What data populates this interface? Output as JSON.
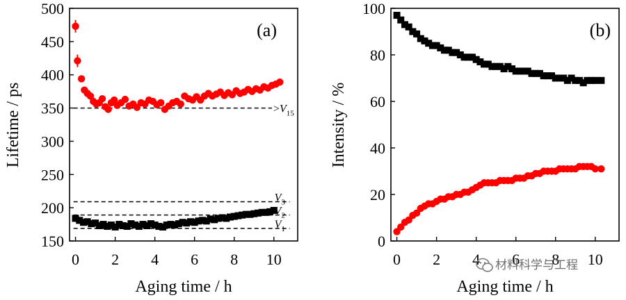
{
  "chart_data": [
    {
      "type": "scatter",
      "panel_label": "(a)",
      "xlabel": "Aging time / h",
      "ylabel": "Lifetime / ps",
      "xlim": [
        -0.3,
        11.2
      ],
      "ylim": [
        150,
        500
      ],
      "xticks": [
        "0",
        "2",
        "4",
        "6",
        "8",
        "10"
      ],
      "yticks": [
        "150",
        "200",
        "250",
        "300",
        "350",
        "400",
        "450",
        "500"
      ],
      "series": [
        {
          "name": "red",
          "color": "#ff0000",
          "marker": "circle",
          "x": [
            0,
            0.1,
            0.3,
            0.45,
            0.6,
            0.75,
            0.9,
            1.05,
            1.2,
            1.35,
            1.5,
            1.65,
            1.8,
            1.95,
            2.1,
            2.3,
            2.5,
            2.7,
            2.9,
            3.1,
            3.3,
            3.5,
            3.7,
            3.9,
            4.1,
            4.3,
            4.5,
            4.7,
            4.9,
            5.1,
            5.3,
            5.5,
            5.7,
            5.9,
            6.1,
            6.3,
            6.5,
            6.7,
            6.9,
            7.1,
            7.3,
            7.5,
            7.7,
            7.9,
            8.1,
            8.3,
            8.5,
            8.7,
            8.9,
            9.1,
            9.3,
            9.5,
            9.7,
            9.9,
            10.1,
            10.3
          ],
          "y": [
            473,
            421,
            394,
            377,
            372,
            368,
            360,
            356,
            358,
            364,
            352,
            348,
            358,
            362,
            354,
            358,
            363,
            353,
            356,
            351,
            358,
            356,
            362,
            360,
            355,
            358,
            348,
            353,
            358,
            360,
            356,
            368,
            364,
            362,
            367,
            362,
            368,
            372,
            368,
            371,
            374,
            369,
            373,
            370,
            376,
            372,
            374,
            378,
            375,
            379,
            377,
            382,
            380,
            384,
            386,
            389
          ],
          "error_bars_on": [
            0,
            1
          ]
        },
        {
          "name": "black",
          "color": "#000000",
          "marker": "square",
          "x": [
            0,
            0.2,
            0.4,
            0.6,
            0.8,
            1.0,
            1.2,
            1.4,
            1.6,
            1.8,
            2.0,
            2.2,
            2.4,
            2.6,
            2.8,
            3.0,
            3.2,
            3.4,
            3.6,
            3.8,
            4.0,
            4.2,
            4.4,
            4.6,
            4.8,
            5.0,
            5.2,
            5.4,
            5.6,
            5.8,
            6.0,
            6.2,
            6.4,
            6.6,
            6.8,
            7.0,
            7.2,
            7.4,
            7.6,
            7.8,
            8.0,
            8.2,
            8.4,
            8.6,
            8.8,
            9.0,
            9.2,
            9.4,
            9.6,
            9.8,
            10.0
          ],
          "y": [
            184,
            181,
            178,
            179,
            176,
            177,
            173,
            175,
            172,
            174,
            171,
            175,
            173,
            172,
            176,
            174,
            172,
            175,
            173,
            176,
            174,
            172,
            171,
            174,
            175,
            174,
            176,
            178,
            177,
            179,
            178,
            180,
            181,
            180,
            183,
            182,
            184,
            185,
            184,
            186,
            187,
            188,
            189,
            190,
            190,
            191,
            192,
            193,
            193,
            194,
            196
          ]
        }
      ],
      "reference_lines": [
        {
          "y": 350,
          "x_range": [
            -0.1,
            9.9
          ],
          "label_main": "V",
          "label_sub": "15",
          "label_prefix": ">"
        },
        {
          "y": 209,
          "x_range": [
            -0.1,
            10.8
          ],
          "label_main": "V",
          "label_sub": "3"
        },
        {
          "y": 189,
          "x_range": [
            -0.1,
            10.8
          ],
          "label_main": "V",
          "label_sub": "2"
        },
        {
          "y": 169,
          "x_range": [
            -0.1,
            10.8
          ],
          "label_main": "V",
          "label_sub": "1"
        }
      ]
    },
    {
      "type": "scatter",
      "panel_label": "(b)",
      "xlabel": "Aging time / h",
      "ylabel": "Intensity / %",
      "xlim": [
        -0.3,
        11.2
      ],
      "ylim": [
        0,
        100
      ],
      "xticks": [
        "0",
        "2",
        "4",
        "6",
        "8",
        "10"
      ],
      "yticks": [
        "0",
        "20",
        "40",
        "60",
        "80",
        "100"
      ],
      "series": [
        {
          "name": "black",
          "color": "#000000",
          "marker": "square",
          "x": [
            0,
            0.2,
            0.4,
            0.6,
            0.8,
            1.0,
            1.2,
            1.4,
            1.6,
            1.8,
            2.0,
            2.2,
            2.4,
            2.6,
            2.8,
            3.0,
            3.2,
            3.4,
            3.6,
            3.8,
            4.0,
            4.2,
            4.4,
            4.6,
            4.8,
            5.0,
            5.2,
            5.4,
            5.6,
            5.8,
            6.0,
            6.2,
            6.4,
            6.6,
            6.8,
            7.0,
            7.2,
            7.4,
            7.6,
            7.8,
            8.0,
            8.2,
            8.4,
            8.6,
            8.8,
            9.0,
            9.2,
            9.4,
            9.6,
            9.8,
            10.0,
            10.3
          ],
          "y": [
            97,
            95,
            93,
            92,
            90,
            89,
            87,
            86,
            85,
            84,
            84,
            83,
            82,
            82,
            81,
            81,
            80,
            79,
            79,
            79,
            78,
            77,
            76,
            76,
            75,
            75,
            75,
            74,
            75,
            74,
            73,
            73,
            73,
            73,
            72,
            72,
            72,
            71,
            71,
            71,
            70,
            70,
            70,
            69,
            70,
            69,
            69,
            68,
            69,
            69,
            69,
            69
          ]
        },
        {
          "name": "red",
          "color": "#ff0000",
          "marker": "circle",
          "x": [
            0,
            0.2,
            0.4,
            0.6,
            0.8,
            1.0,
            1.2,
            1.4,
            1.6,
            1.8,
            2.0,
            2.2,
            2.4,
            2.6,
            2.8,
            3.0,
            3.2,
            3.4,
            3.6,
            3.8,
            4.0,
            4.2,
            4.4,
            4.6,
            4.8,
            5.0,
            5.2,
            5.4,
            5.6,
            5.8,
            6.0,
            6.2,
            6.4,
            6.6,
            6.8,
            7.0,
            7.2,
            7.4,
            7.6,
            7.8,
            8.0,
            8.2,
            8.4,
            8.6,
            8.8,
            9.0,
            9.2,
            9.4,
            9.6,
            9.8,
            10.0,
            10.3
          ],
          "y": [
            4,
            6,
            8,
            9,
            11,
            12,
            14,
            15,
            16,
            16,
            17,
            18,
            18,
            19,
            19,
            20,
            20,
            21,
            21,
            22,
            23,
            24,
            25,
            25,
            25,
            25,
            26,
            26,
            26,
            26,
            27,
            27,
            27,
            28,
            28,
            29,
            29,
            30,
            30,
            30,
            30,
            31,
            31,
            31,
            31,
            31,
            32,
            32,
            32,
            32,
            31,
            31
          ]
        }
      ]
    }
  ],
  "watermark": {
    "icon": "wechat-icon",
    "text": "材料科学与工程"
  }
}
